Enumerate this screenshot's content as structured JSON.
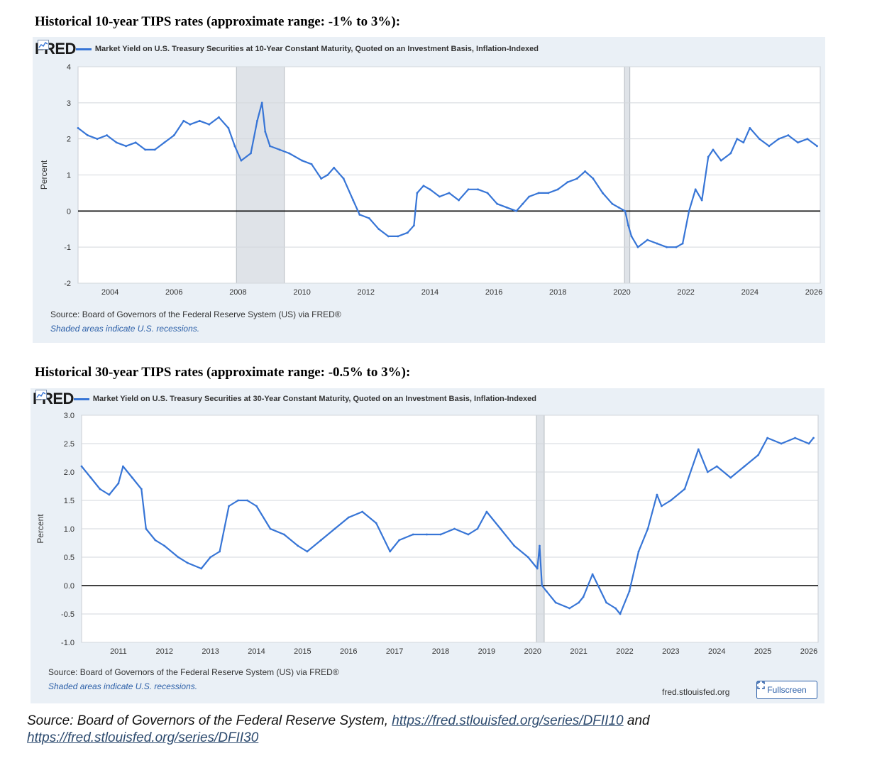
{
  "headings": {
    "h1": "Historical 10-year TIPS rates (approximate range: -1% to 3%):",
    "h2": "Historical 30-year TIPS rates (approximate range: -0.5% to 3%):"
  },
  "fred_logo": "FRED",
  "colors": {
    "series": "#3775d6",
    "recession": "#dfe3e8",
    "panel": "#eaf0f6",
    "grid": "#d3d7dc",
    "zero_line": "#000000"
  },
  "charts": {
    "tips10": {
      "legend": "Market Yield on U.S. Treasury Securities at 10-Year Constant Maturity, Quoted on an Investment Basis, Inflation-Indexed",
      "source": "Source: Board of Governors of the Federal Reserve System (US) via FRED®",
      "shaded_note": "Shaded areas indicate U.S. recessions."
    },
    "tips30": {
      "legend": "Market Yield on U.S. Treasury Securities at 30-Year Constant Maturity, Quoted on an Investment Basis, Inflation-Indexed",
      "source": "Source: Board of Governors of the Federal Reserve System (US) via FRED®",
      "shaded_note": "Shaded areas indicate U.S. recessions.",
      "site": "fred.stlouisfed.org",
      "fullscreen": "Fullscreen"
    }
  },
  "footer": {
    "prefix": "Source: Board of Governors of the Federal Reserve System, ",
    "link1": "https://fred.stlouisfed.org/series/DFII10",
    "middle": " and",
    "link2": "https://fred.stlouisfed.org/series/DFII30"
  },
  "chart_data": [
    {
      "type": "line",
      "ylabel": "Percent",
      "xlim": [
        2003.0,
        2026.2
      ],
      "ylim": [
        -2,
        4
      ],
      "yticks": [
        "4",
        "3",
        "2",
        "1",
        "0",
        "-1",
        "-2"
      ],
      "ytick_values": [
        4,
        3,
        2,
        1,
        0,
        -1,
        -2
      ],
      "xticks": [
        "2004",
        "2006",
        "2008",
        "2010",
        "2012",
        "2014",
        "2016",
        "2018",
        "2020",
        "2022",
        "2024",
        "2026"
      ],
      "xtick_values": [
        2004,
        2006,
        2008,
        2010,
        2012,
        2014,
        2016,
        2018,
        2020,
        2022,
        2024,
        2026
      ],
      "recessions": [
        [
          2007.95,
          2009.45
        ],
        [
          2020.08,
          2020.25
        ]
      ],
      "reference_line": 0,
      "grid": "horizontal",
      "series": [
        {
          "x": [
            2003.0,
            2003.3,
            2003.6,
            2003.9,
            2004.2,
            2004.5,
            2004.8,
            2005.1,
            2005.4,
            2005.7,
            2006.0,
            2006.3,
            2006.5,
            2006.8,
            2007.1,
            2007.4,
            2007.7,
            2007.9,
            2008.1,
            2008.4,
            2008.6,
            2008.75,
            2008.85,
            2009.0,
            2009.3,
            2009.6,
            2010.0,
            2010.3,
            2010.6,
            2010.8,
            2011.0,
            2011.3,
            2011.6,
            2011.8,
            2012.1,
            2012.4,
            2012.7,
            2013.0,
            2013.3,
            2013.5,
            2013.6,
            2013.8,
            2014.0,
            2014.3,
            2014.6,
            2014.9,
            2015.2,
            2015.5,
            2015.8,
            2016.1,
            2016.4,
            2016.7,
            2016.9,
            2017.1,
            2017.4,
            2017.7,
            2018.0,
            2018.3,
            2018.6,
            2018.85,
            2019.1,
            2019.4,
            2019.7,
            2019.9,
            2020.1,
            2020.2,
            2020.3,
            2020.5,
            2020.8,
            2021.1,
            2021.4,
            2021.7,
            2021.9,
            2022.1,
            2022.3,
            2022.5,
            2022.7,
            2022.85,
            2023.1,
            2023.4,
            2023.6,
            2023.8,
            2024.0,
            2024.3,
            2024.6,
            2024.9,
            2025.2,
            2025.5,
            2025.8,
            2026.1
          ],
          "y": [
            2.3,
            2.1,
            2.0,
            2.1,
            1.9,
            1.8,
            1.9,
            1.7,
            1.7,
            1.9,
            2.1,
            2.5,
            2.4,
            2.5,
            2.4,
            2.6,
            2.3,
            1.8,
            1.4,
            1.6,
            2.5,
            3.0,
            2.2,
            1.8,
            1.7,
            1.6,
            1.4,
            1.3,
            0.9,
            1.0,
            1.2,
            0.9,
            0.3,
            -0.1,
            -0.2,
            -0.5,
            -0.7,
            -0.7,
            -0.6,
            -0.4,
            0.5,
            0.7,
            0.6,
            0.4,
            0.5,
            0.3,
            0.6,
            0.6,
            0.5,
            0.2,
            0.1,
            0.0,
            0.2,
            0.4,
            0.5,
            0.5,
            0.6,
            0.8,
            0.9,
            1.1,
            0.9,
            0.5,
            0.2,
            0.1,
            0.0,
            -0.4,
            -0.7,
            -1.0,
            -0.8,
            -0.9,
            -1.0,
            -1.0,
            -0.9,
            0.0,
            0.6,
            0.3,
            1.5,
            1.7,
            1.4,
            1.6,
            2.0,
            1.9,
            2.3,
            2.0,
            1.8,
            2.0,
            2.1,
            1.9,
            2.0,
            1.8
          ]
        }
      ]
    },
    {
      "type": "line",
      "ylabel": "Percent",
      "xlim": [
        2010.2,
        2026.2
      ],
      "ylim": [
        -1.0,
        3.0
      ],
      "yticks": [
        "3.0",
        "2.5",
        "2.0",
        "1.5",
        "1.0",
        "0.5",
        "0.0",
        "-0.5",
        "-1.0"
      ],
      "ytick_values": [
        3.0,
        2.5,
        2.0,
        1.5,
        1.0,
        0.5,
        0.0,
        -0.5,
        -1.0
      ],
      "xticks": [
        "2011",
        "2012",
        "2013",
        "2014",
        "2015",
        "2016",
        "2017",
        "2018",
        "2019",
        "2020",
        "2021",
        "2022",
        "2023",
        "2024",
        "2025",
        "2026"
      ],
      "xtick_values": [
        2011,
        2012,
        2013,
        2014,
        2015,
        2016,
        2017,
        2018,
        2019,
        2020,
        2021,
        2022,
        2023,
        2024,
        2025,
        2026
      ],
      "recessions": [
        [
          2020.08,
          2020.25
        ]
      ],
      "reference_line": 0,
      "grid": "horizontal",
      "series": [
        {
          "x": [
            2010.2,
            2010.4,
            2010.6,
            2010.8,
            2011.0,
            2011.1,
            2011.3,
            2011.5,
            2011.6,
            2011.8,
            2012.0,
            2012.3,
            2012.5,
            2012.8,
            2013.0,
            2013.2,
            2013.4,
            2013.6,
            2013.8,
            2014.0,
            2014.3,
            2014.6,
            2014.9,
            2015.1,
            2015.4,
            2015.7,
            2016.0,
            2016.3,
            2016.6,
            2016.9,
            2017.1,
            2017.4,
            2017.7,
            2018.0,
            2018.3,
            2018.6,
            2018.8,
            2019.0,
            2019.3,
            2019.6,
            2019.9,
            2020.1,
            2020.15,
            2020.2,
            2020.3,
            2020.5,
            2020.8,
            2021.0,
            2021.1,
            2021.3,
            2021.6,
            2021.8,
            2021.9,
            2022.1,
            2022.3,
            2022.5,
            2022.7,
            2022.8,
            2023.0,
            2023.3,
            2023.6,
            2023.8,
            2024.0,
            2024.3,
            2024.6,
            2024.9,
            2025.1,
            2025.4,
            2025.7,
            2026.0,
            2026.1
          ],
          "y": [
            2.1,
            1.9,
            1.7,
            1.6,
            1.8,
            2.1,
            1.9,
            1.7,
            1.0,
            0.8,
            0.7,
            0.5,
            0.4,
            0.3,
            0.5,
            0.6,
            1.4,
            1.5,
            1.5,
            1.4,
            1.0,
            0.9,
            0.7,
            0.6,
            0.8,
            1.0,
            1.2,
            1.3,
            1.1,
            0.6,
            0.8,
            0.9,
            0.9,
            0.9,
            1.0,
            0.9,
            1.0,
            1.3,
            1.0,
            0.7,
            0.5,
            0.3,
            0.7,
            0.0,
            -0.1,
            -0.3,
            -0.4,
            -0.3,
            -0.2,
            0.2,
            -0.3,
            -0.4,
            -0.5,
            -0.1,
            0.6,
            1.0,
            1.6,
            1.4,
            1.5,
            1.7,
            2.4,
            2.0,
            2.1,
            1.9,
            2.1,
            2.3,
            2.6,
            2.5,
            2.6,
            2.5,
            2.6
          ]
        }
      ]
    }
  ]
}
